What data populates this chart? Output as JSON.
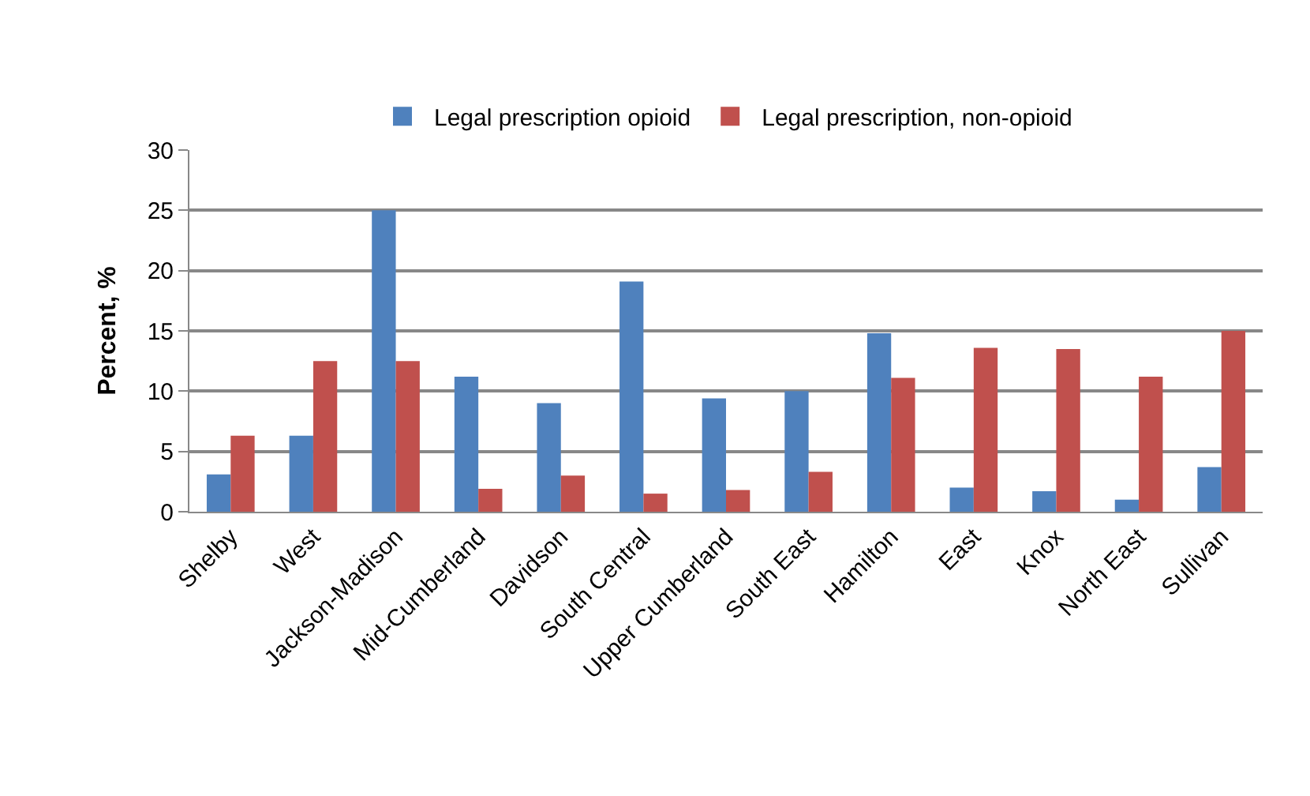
{
  "chart_data": {
    "type": "bar",
    "ylabel": "Percent, %",
    "categories": [
      "Shelby",
      "West",
      "Jackson-Madison",
      "Mid-Cumberland",
      "Davidson",
      "South Central",
      "Upper Cumberland",
      "South East",
      "Hamilton",
      "East",
      "Knox",
      "North East",
      "Sullivan"
    ],
    "series": [
      {
        "name": "Legal prescription opioid",
        "color": "#4f81bd",
        "values": [
          3.1,
          6.3,
          25,
          11.2,
          9,
          19.1,
          9.4,
          10,
          14.8,
          2,
          1.7,
          1,
          3.7
        ]
      },
      {
        "name": "Legal prescription, non-opioid",
        "color": "#c0504d",
        "values": [
          6.3,
          12.5,
          12.5,
          1.9,
          3,
          1.5,
          1.8,
          3.3,
          11.1,
          13.6,
          13.5,
          11.2,
          15
        ]
      }
    ],
    "ylim": [
      0,
      30
    ],
    "yticks": [
      0,
      5,
      10,
      15,
      20,
      25,
      30
    ],
    "grid": "y",
    "legend": "top"
  }
}
